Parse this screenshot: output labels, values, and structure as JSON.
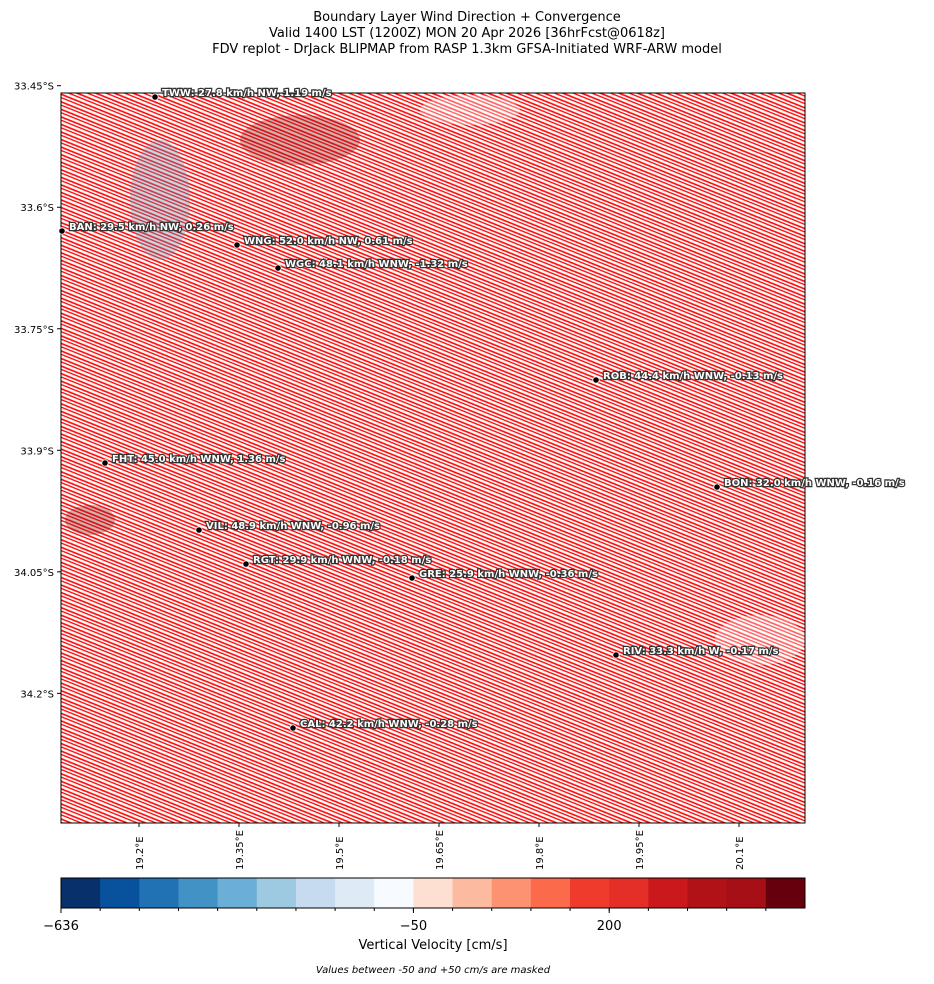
{
  "map": {
    "title": [
      "Boundary Layer Wind Direction + Convergence",
      "Valid 1400 LST (1200Z) MON 20 Apr 2026 [36hrFcst@0618z]",
      "FDV replot - DrJack BLIPMAP from RASP 1.3km GFSA-Initiated WRF-ARW model"
    ],
    "xlim": [
      19.083,
      20.199
    ],
    "ylim": [
      -33.459,
      -34.36
    ],
    "xticks": [
      {
        "value": 19.2,
        "label": "19.2°E"
      },
      {
        "value": 19.35,
        "label": "19.35°E"
      },
      {
        "value": 19.5,
        "label": "19.5°E"
      },
      {
        "value": 19.65,
        "label": "19.65°E"
      },
      {
        "value": 19.8,
        "label": "19.8°E"
      },
      {
        "value": 19.95,
        "label": "19.95°E"
      },
      {
        "value": 20.1,
        "label": "20.1°E"
      }
    ],
    "yticks": [
      {
        "value": -33.45,
        "label": "33.45°S"
      },
      {
        "value": -33.6,
        "label": "33.6°S"
      },
      {
        "value": -33.75,
        "label": "33.75°S"
      },
      {
        "value": -33.9,
        "label": "33.9°S"
      },
      {
        "value": -34.05,
        "label": "34.05°S"
      },
      {
        "value": -34.2,
        "label": "34.2°S"
      }
    ],
    "stations": [
      "TWW: 27.8 km/h NW, 1.19 m/s",
      "BAN: 29.5 km/h NW, 0.26 m/s",
      "WNG: 52.0 km/h NW, 0.61 m/s",
      "WGC: 48.1 km/h WNW, -1.32 m/s",
      "ROB: 44.4 km/h WNW, -0.13 m/s",
      "FHT: 45.0 km/h WNW, 1.36 m/s",
      "BON: 32.0 km/h WNW, -0.16 m/s",
      "VIL: 48.9 km/h WNW, -0.96 m/s",
      "RGT: 29.9 km/h WNW, -0.18 m/s",
      "GRE: 25.9 km/h WNW, -0.36 m/s",
      "RIV: 33.3 km/h W, -0.17 m/s",
      "CAL: 42.2 km/h WNW, -0.28 m/s"
    ],
    "wind_color": "#ff0000",
    "colorbar": {
      "colors": [
        "#08306b",
        "#08519c",
        "#2171b5",
        "#4292c6",
        "#6baed6",
        "#9ecae1",
        "#c6dbef",
        "#deebf7",
        "#f7fbff",
        "#fee0d2",
        "#fcbba1",
        "#fc9272",
        "#fb6a4a",
        "#ef3b2c",
        "#e32f27",
        "#cb181d",
        "#b11218",
        "#a50f15",
        "#67000d"
      ],
      "ticks": [
        {
          "value": -636,
          "label": "−636"
        },
        {
          "value": -50,
          "label": "−50"
        },
        200
      ],
      "label": "Vertical Velocity [cm/s]"
    },
    "note": "Values between -50 and +50 cm/s are masked"
  }
}
